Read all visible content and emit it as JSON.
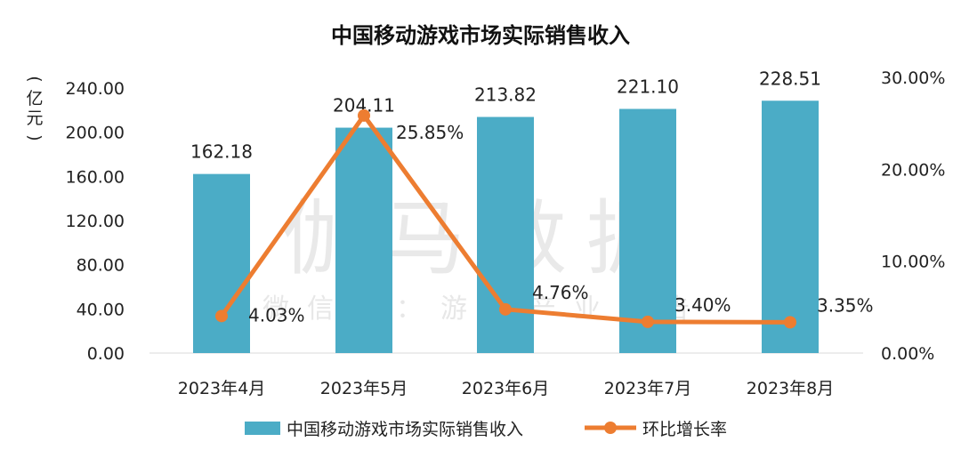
{
  "chart_data": {
    "type": "bar",
    "title": "中国移动游戏市场实际销售收入",
    "ylabel": "(亿元)",
    "categories": [
      "2023年4月",
      "2023年5月",
      "2023年6月",
      "2023年7月",
      "2023年8月"
    ],
    "series": [
      {
        "name": "中国移动游戏市场实际销售收入",
        "type": "bar",
        "axis": "left",
        "color": "#4BACC6",
        "values": [
          162.18,
          204.11,
          213.82,
          221.1,
          228.51
        ],
        "labels": [
          "162.18",
          "204.11",
          "213.82",
          "221.10",
          "228.51"
        ]
      },
      {
        "name": "环比增长率",
        "type": "line",
        "axis": "right",
        "color": "#ED7D31",
        "values": [
          4.03,
          25.85,
          4.76,
          3.4,
          3.35
        ],
        "labels": [
          "4.03%",
          "25.85%",
          "4.76%",
          "3.40%",
          "3.35%"
        ]
      }
    ],
    "y_left": {
      "range": [
        0,
        240
      ],
      "ticks": [
        "0.00",
        "40.00",
        "80.00",
        "120.00",
        "160.00",
        "200.00",
        "240.00"
      ]
    },
    "y_right": {
      "range": [
        0,
        30
      ],
      "ticks": [
        "0.00%",
        "10.00%",
        "20.00%",
        "30.00%"
      ]
    },
    "grid": false,
    "legend_position": "bottom"
  },
  "watermark": {
    "main": "伽马数据",
    "sub": "微信号：游戏产业报告"
  }
}
